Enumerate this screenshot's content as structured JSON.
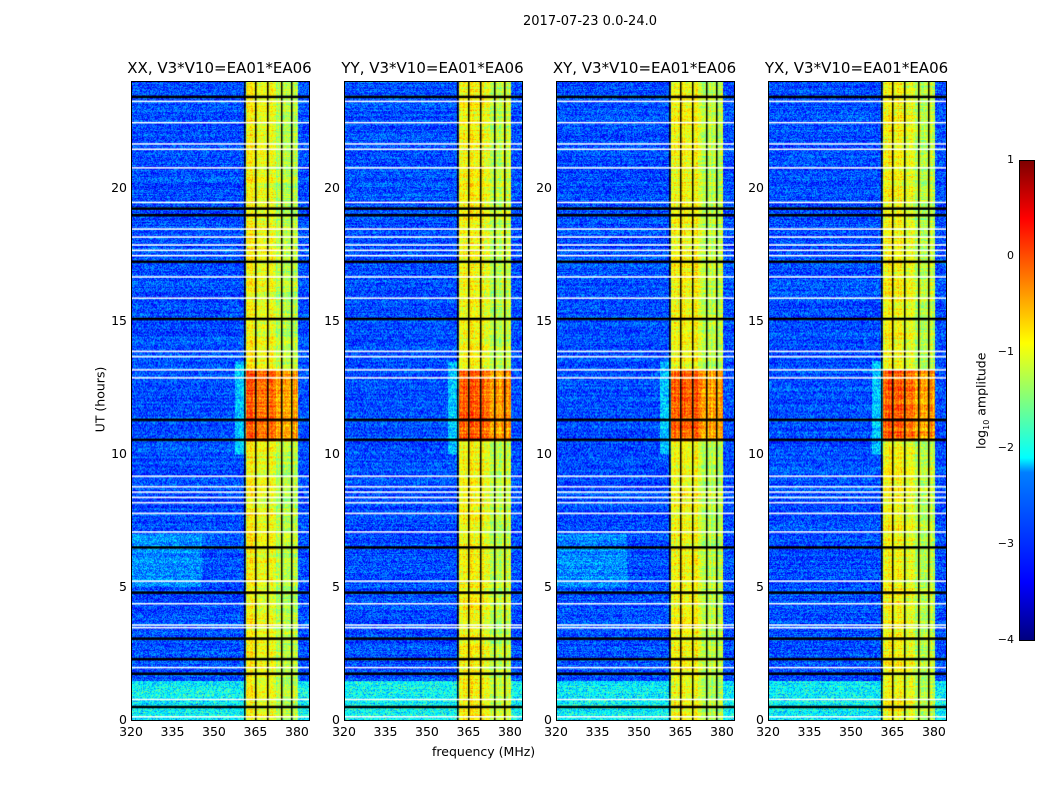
{
  "suptitle": "2017-07-23 0.0-24.0",
  "chart_data": {
    "type": "heatmap",
    "xlabel": "frequency (MHz)",
    "ylabel": "UT (hours)",
    "xlim": [
      320,
      384
    ],
    "ylim": [
      0,
      24
    ],
    "xticks": [
      "320",
      "335",
      "350",
      "365",
      "380"
    ],
    "yticks": [
      "0",
      "5",
      "10",
      "15",
      "20"
    ],
    "panels": [
      {
        "title": "XX, V3*V10=EA01*EA06"
      },
      {
        "title": "YY, V3*V10=EA01*EA06"
      },
      {
        "title": "XY, V3*V10=EA01*EA06"
      },
      {
        "title": "YX, V3*V10=EA01*EA06"
      }
    ],
    "colorbar": {
      "label_prefix": "log",
      "label_sub": "10",
      "label_suffix": " amplitude",
      "range": [
        -4,
        1
      ],
      "ticks": [
        "1",
        "0",
        "−1",
        "−2",
        "−3",
        "−4"
      ],
      "colormap": "jet"
    },
    "rfi_band_mhz": [
      361,
      380
    ],
    "strong_rfi_hours": [
      10.5,
      13.2
    ],
    "flagged_black_hours": [
      23.45,
      19.25,
      19.0,
      17.25,
      15.1,
      11.3,
      10.55,
      6.5,
      4.8,
      3.07,
      2.3,
      1.75,
      0.5
    ],
    "flagged_white_hours": [
      23.3,
      22.5,
      21.7,
      21.5,
      20.8,
      19.5,
      18.5,
      18.2,
      17.9,
      17.7,
      17.5,
      16.7,
      15.9,
      13.9,
      13.7,
      13.2,
      12.9,
      9.2,
      8.8,
      8.6,
      8.4,
      8.2,
      7.8,
      7.1,
      5.25,
      4.4,
      3.6,
      3.5,
      2.0,
      0.8,
      0.15
    ],
    "flagged_channels_mhz": [
      360.5,
      364.5,
      368.8,
      374,
      377.5
    ]
  }
}
